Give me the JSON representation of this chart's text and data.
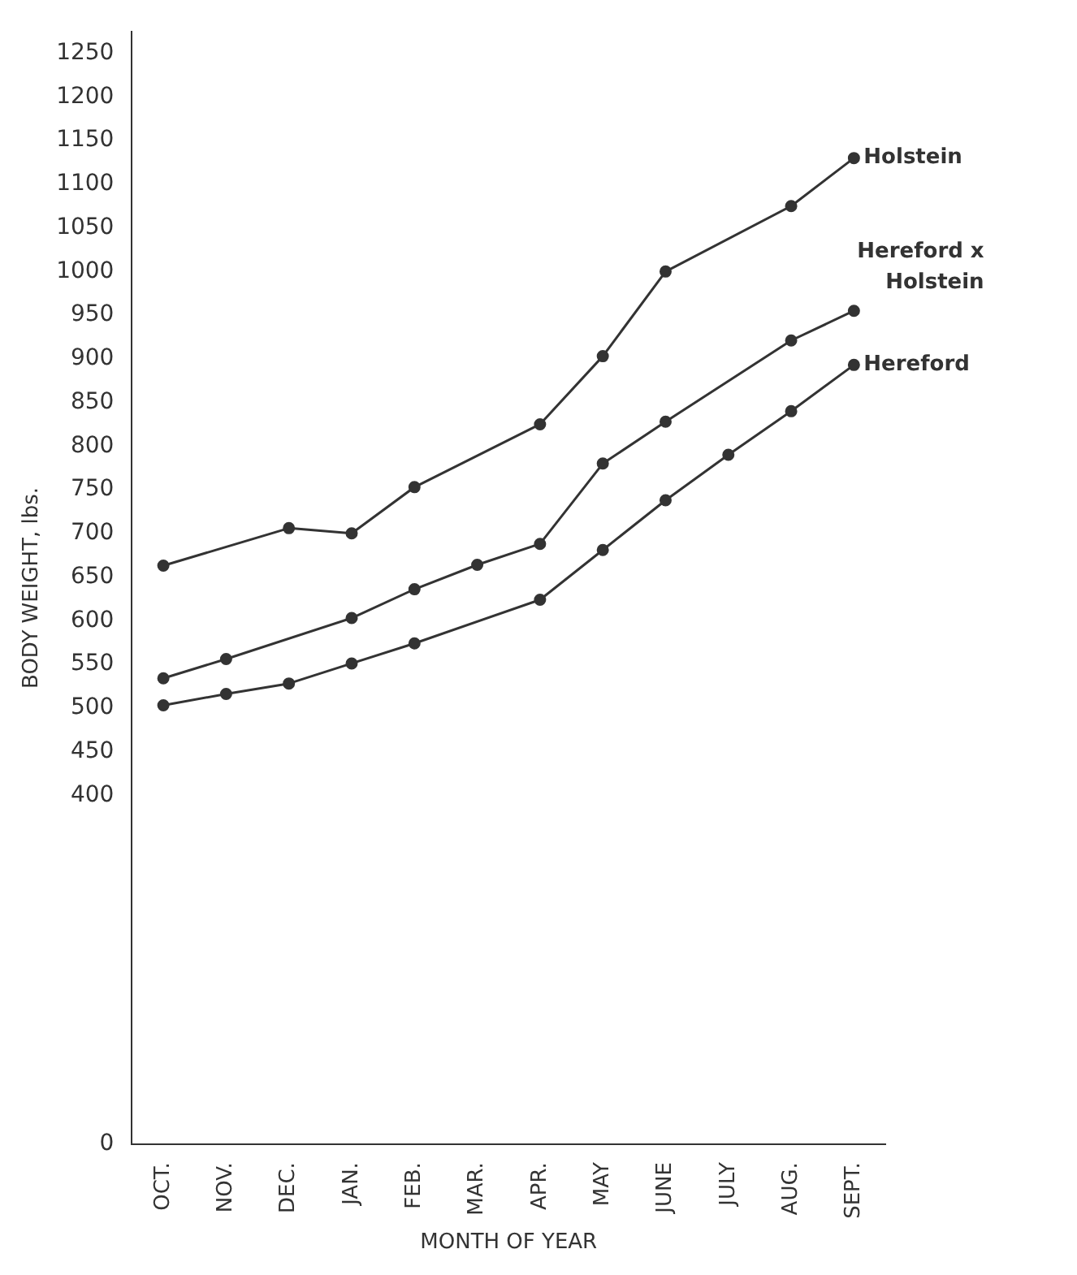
{
  "chart_data": {
    "type": "line",
    "xlabel": "MONTH OF YEAR",
    "ylabel": "BODY WEIGHT, lbs.",
    "categories": [
      "OCT.",
      "NOV.",
      "DEC.",
      "JAN.",
      "FEB.",
      "MAR.",
      "APR.",
      "MAY",
      "JUNE",
      "JULY",
      "AUG.",
      "SEPT."
    ],
    "series": [
      {
        "name": "Holstein",
        "color": "#333333",
        "values": [
          663,
          null,
          706,
          700,
          753,
          null,
          825,
          903,
          1000,
          null,
          1075,
          1130
        ]
      },
      {
        "name": "Hereford x Holstein",
        "color": "#333333",
        "values": [
          534,
          556,
          null,
          603,
          636,
          664,
          688,
          780,
          828,
          null,
          921,
          955
        ]
      },
      {
        "name": "Hereford",
        "color": "#333333",
        "values": [
          503,
          516,
          528,
          551,
          574,
          null,
          624,
          681,
          738,
          790,
          840,
          893
        ]
      }
    ],
    "ylim": [
      0,
      1275
    ],
    "yticks": [
      0,
      400,
      450,
      500,
      550,
      600,
      650,
      700,
      750,
      800,
      850,
      900,
      950,
      1000,
      1050,
      1100,
      1150,
      1200,
      1250
    ],
    "grid": false,
    "legend": false,
    "marker": "circle",
    "line_style": "solid"
  }
}
